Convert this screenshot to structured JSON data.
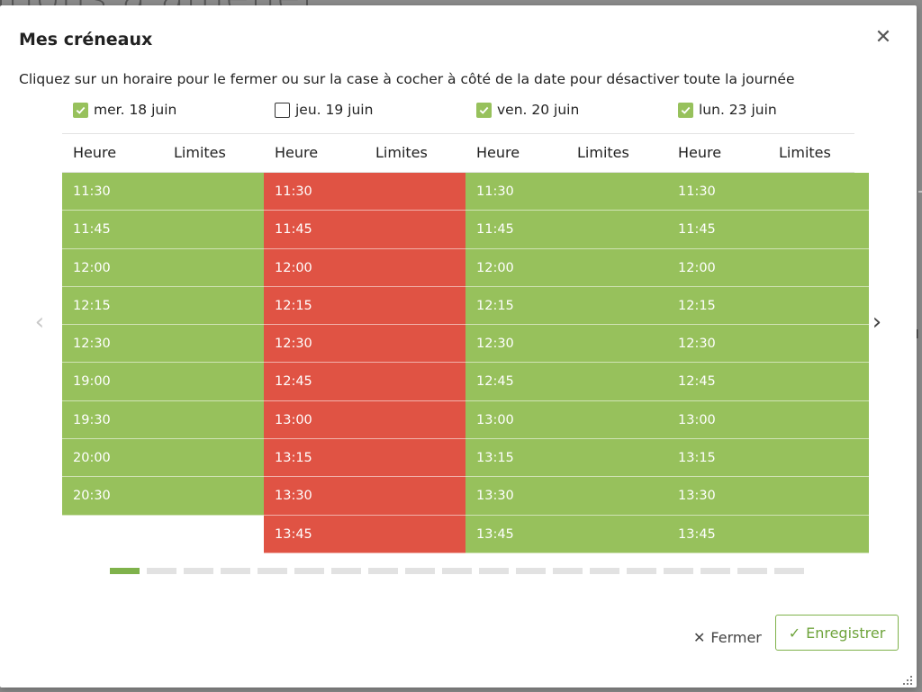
{
  "backdrop": {
    "title_fragment": "ations à amener"
  },
  "modal": {
    "title": "Mes créneaux",
    "instructions": "Cliquez sur un horaire pour le fermer ou sur la case à cocher à côté de la date pour désactiver toute la journée",
    "close_icon": "close-icon",
    "column_headers": {
      "hour": "Heure",
      "limits": "Limites"
    },
    "days": [
      {
        "label": "mer. 18 juin",
        "checked": true,
        "status": "open",
        "slots": [
          "11:30",
          "11:45",
          "12:00",
          "12:15",
          "12:30",
          "19:00",
          "19:30",
          "20:00",
          "20:30"
        ]
      },
      {
        "label": "jeu. 19 juin",
        "checked": false,
        "status": "closed",
        "slots": [
          "11:30",
          "11:45",
          "12:00",
          "12:15",
          "12:30",
          "12:45",
          "13:00",
          "13:15",
          "13:30",
          "13:45"
        ]
      },
      {
        "label": "ven. 20 juin",
        "checked": true,
        "status": "open",
        "slots": [
          "11:30",
          "11:45",
          "12:00",
          "12:15",
          "12:30",
          "12:45",
          "13:00",
          "13:15",
          "13:30",
          "13:45"
        ]
      },
      {
        "label": "lun. 23 juin",
        "checked": true,
        "status": "open",
        "slots": [
          "11:30",
          "11:45",
          "12:00",
          "12:15",
          "12:30",
          "12:45",
          "13:00",
          "13:15",
          "13:30",
          "13:45"
        ]
      }
    ],
    "colors": {
      "open": "#97c15c",
      "closed": "#e05344",
      "accent": "#7fb24b"
    },
    "pager": {
      "total_pages": 19,
      "current_page": 1
    },
    "nav": {
      "prev_icon": "chevron-left-icon",
      "next_icon": "chevron-right-icon"
    },
    "footer": {
      "close_label": "Fermer",
      "save_label": "Enregistrer"
    }
  }
}
